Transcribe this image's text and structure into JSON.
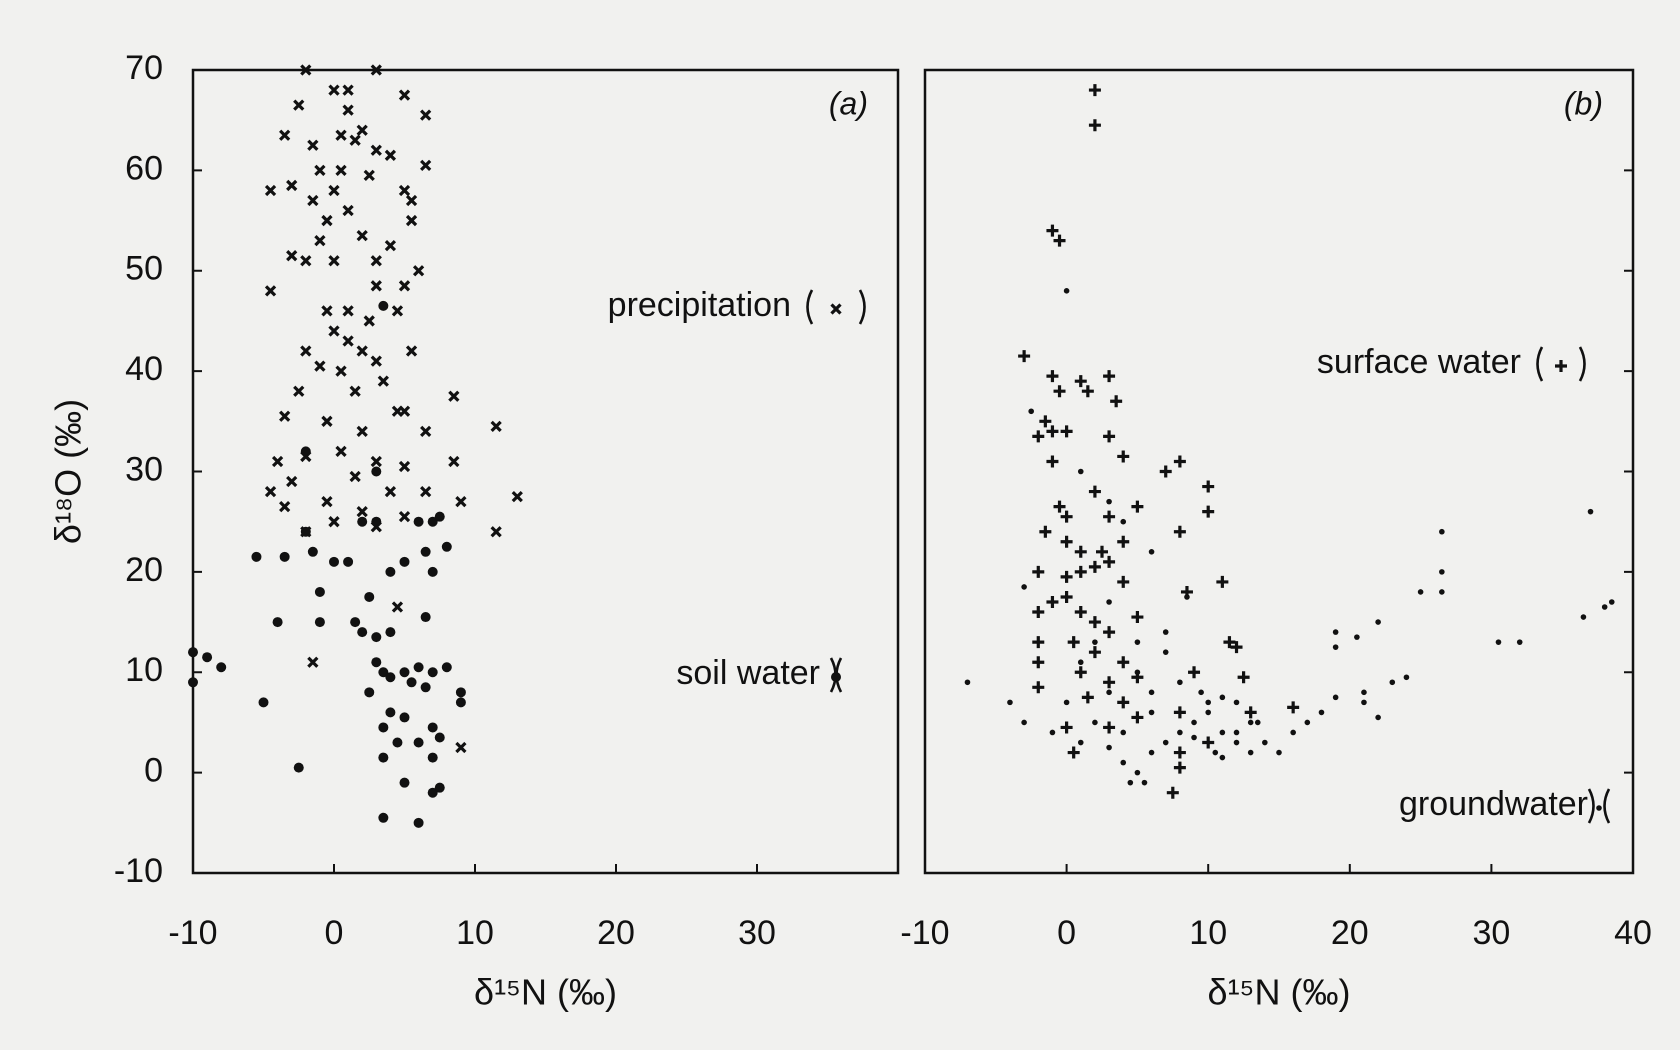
{
  "chart_data": [
    {
      "type": "scatter",
      "panel_label": "(a)",
      "xlabel": "δ¹⁵N (‰)",
      "ylabel": "δ¹⁸O (‰)",
      "xlim": [
        -10,
        40
      ],
      "xticks": [
        -10,
        0,
        10,
        20,
        30
      ],
      "ylim": [
        -10,
        70
      ],
      "yticks": [
        -10,
        0,
        10,
        20,
        30,
        40,
        50,
        60,
        70
      ],
      "ytick_side": "left",
      "ytick_labels": true,
      "series": [
        {
          "name": "precipitation",
          "color": "#111111",
          "marker": "x",
          "x": [
            -2,
            3,
            0,
            1,
            5,
            6.5,
            -2.5,
            1,
            -3.5,
            0.5,
            2,
            1.5,
            -1.5,
            3,
            4,
            6.5,
            -1,
            0.5,
            2.5,
            -3,
            -4.5,
            0,
            5,
            -1.5,
            5.5,
            1,
            -0.5,
            5.5,
            -1,
            2,
            4,
            -3,
            -2,
            0,
            3,
            6,
            -4.5,
            3,
            5,
            -0.5,
            1,
            2.5,
            4.5,
            0,
            1,
            2,
            -2,
            3,
            5.5,
            -1,
            0.5,
            3.5,
            -2.5,
            1.5,
            5,
            8.5,
            -3.5,
            -0.5,
            2,
            4.5,
            6.5,
            11.5,
            -4,
            -2,
            0.5,
            3,
            5,
            8.5,
            -3,
            1.5,
            4,
            -4.5,
            -0.5,
            6.5,
            9,
            13,
            -3.5,
            2,
            5,
            0,
            3,
            -2,
            11.5,
            4.5,
            -1.5,
            9
          ],
          "values": [
            70,
            70,
            68,
            68,
            67.5,
            65.5,
            66.5,
            66,
            63.5,
            63.5,
            64,
            63,
            62.5,
            62,
            61.5,
            60.5,
            60,
            60,
            59.5,
            58.5,
            58,
            58,
            58,
            57,
            57,
            56,
            55,
            55,
            53,
            53.5,
            52.5,
            51.5,
            51,
            51,
            51,
            50,
            48,
            48.5,
            48.5,
            46,
            46,
            45,
            46,
            44,
            43,
            42,
            42,
            41,
            42,
            40.5,
            40,
            39,
            38,
            38,
            36,
            37.5,
            35.5,
            35,
            34,
            36,
            34,
            34.5,
            31,
            31.5,
            32,
            31,
            30.5,
            31,
            29,
            29.5,
            28,
            28,
            27,
            28,
            27,
            27.5,
            26.5,
            26,
            25.5,
            25,
            24.5,
            24,
            24,
            16.5,
            11,
            2.5
          ]
        },
        {
          "name": "soil water",
          "color": "#111111",
          "marker": "circle",
          "x": [
            -10,
            -9,
            -8,
            -10,
            -5.5,
            -3.5,
            -4,
            -5,
            -2.5,
            -2,
            -2,
            -1.5,
            -1,
            -1,
            0,
            1,
            1.5,
            2,
            2.5,
            3,
            3,
            3.5,
            2,
            3,
            4,
            5,
            6,
            7,
            7.5,
            6.5,
            7,
            8,
            6.5,
            4,
            3,
            3.5,
            4,
            5,
            5.5,
            6,
            7,
            8,
            9,
            9,
            2.5,
            4,
            5,
            3.5,
            4.5,
            3.5,
            5,
            6,
            3.5,
            7,
            7.5,
            7,
            6,
            7,
            7.5,
            6.5
          ],
          "values": [
            12,
            11.5,
            10.5,
            9,
            21.5,
            21.5,
            15,
            7,
            0.5,
            32,
            24,
            22,
            18,
            15,
            21,
            21,
            15,
            14,
            17.5,
            13.5,
            30,
            46.5,
            25,
            25,
            20,
            21,
            25,
            25,
            25.5,
            22,
            20,
            22.5,
            15.5,
            14,
            11,
            10,
            9.5,
            10,
            9,
            10.5,
            10,
            10.5,
            8,
            7,
            8,
            6,
            5.5,
            4.5,
            3,
            1.5,
            -1,
            -5,
            -4.5,
            -2,
            -1.5,
            1.5,
            3,
            4.5,
            3.5,
            8.5
          ]
        }
      ]
    },
    {
      "type": "scatter",
      "panel_label": "(b)",
      "xlabel": "δ¹⁵N (‰)",
      "xlim": [
        -10,
        40
      ],
      "xticks": [
        -10,
        0,
        10,
        20,
        30,
        40
      ],
      "ylim": [
        -10,
        70
      ],
      "yticks": [
        -10,
        0,
        10,
        20,
        30,
        40,
        50,
        60,
        70
      ],
      "ytick_side": "right",
      "ytick_labels": false,
      "series": [
        {
          "name": "surface water",
          "color": "#111111",
          "marker": "plus",
          "x": [
            2,
            2,
            -1,
            -0.5,
            -3,
            -1,
            -0.5,
            1,
            1.5,
            3,
            3.5,
            -1.5,
            -2,
            -1,
            0,
            3,
            -1,
            4,
            7,
            8,
            10,
            10,
            2,
            -0.5,
            0,
            3,
            5,
            8,
            -1.5,
            0,
            1,
            2.5,
            4,
            -2,
            0,
            1,
            2,
            3,
            4,
            11,
            -2,
            -1,
            0,
            1,
            2,
            3,
            5,
            8.5,
            -2,
            0.5,
            2,
            4,
            11.5,
            12,
            -2,
            1,
            3,
            5,
            9,
            12.5,
            -2,
            1.5,
            4,
            8,
            13,
            16,
            0,
            3,
            5,
            8,
            10,
            7.5,
            8,
            0.5
          ],
          "values": [
            68,
            64.5,
            54,
            53,
            41.5,
            39.5,
            38,
            39,
            38,
            39.5,
            37,
            35,
            33.5,
            34,
            34,
            33.5,
            31,
            31.5,
            30,
            31,
            28.5,
            26,
            28,
            26.5,
            25.5,
            25.5,
            26.5,
            24,
            24,
            23,
            22,
            22,
            23,
            20,
            19.5,
            20,
            20.5,
            21,
            19,
            19,
            16,
            17,
            17.5,
            16,
            15,
            14,
            15.5,
            18,
            13,
            13,
            12,
            11,
            13,
            12.5,
            11,
            10,
            9,
            9.5,
            10,
            9.5,
            8.5,
            7.5,
            7,
            6,
            6,
            6.5,
            4.5,
            4.5,
            5.5,
            2,
            3,
            -2,
            0.5,
            2
          ]
        },
        {
          "name": "groundwater",
          "color": "#111111",
          "marker": "dot",
          "x": [
            -7,
            -4,
            -3,
            -2.5,
            -3,
            0,
            2,
            1,
            0,
            -1,
            1,
            3,
            4,
            5,
            4.5,
            5.5,
            6,
            7,
            8,
            9,
            10,
            11,
            12,
            13,
            14,
            15,
            16,
            17,
            18,
            19,
            19,
            19,
            20.5,
            22,
            21,
            21,
            22,
            23,
            24,
            25,
            26.5,
            26.5,
            26.5,
            30.5,
            32,
            36.5,
            37,
            38,
            38.5,
            6,
            8,
            9.5,
            10,
            11,
            12,
            13,
            7,
            5,
            3,
            2,
            4,
            6,
            9,
            10.5,
            11,
            12,
            13.5,
            4,
            6,
            8.5,
            3,
            5,
            7,
            1,
            3
          ],
          "values": [
            9,
            7,
            5,
            36,
            18.5,
            48,
            13,
            11,
            7,
            4,
            3,
            2.5,
            1,
            0,
            -1,
            -1,
            2,
            3,
            4,
            5,
            6,
            4,
            3,
            2,
            3,
            2,
            4,
            5,
            6,
            7.5,
            12.5,
            14,
            13.5,
            15,
            8,
            7,
            5.5,
            9,
            9.5,
            18,
            18,
            20,
            24,
            13,
            13,
            15.5,
            26,
            16.5,
            17,
            8,
            9,
            8,
            7,
            7.5,
            7,
            5,
            12,
            10,
            8,
            5,
            4,
            6,
            3.5,
            2,
            1.5,
            4,
            5,
            25,
            22,
            17.5,
            17,
            13,
            14,
            30,
            27
          ]
        }
      ]
    }
  ]
}
